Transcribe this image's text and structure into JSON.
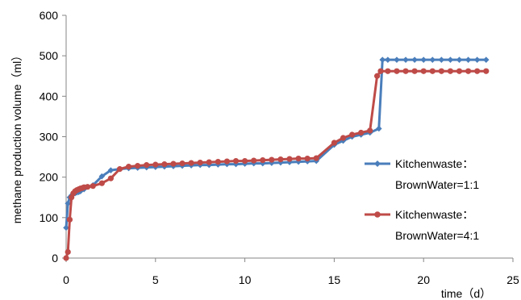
{
  "chart_data": {
    "type": "line",
    "title": "",
    "xlabel": "time（d）",
    "ylabel": "methane production volume（ml）",
    "xlim": [
      0,
      25
    ],
    "ylim": [
      0,
      600
    ],
    "xticks": [
      0,
      5,
      10,
      15,
      20,
      25
    ],
    "yticks": [
      0,
      100,
      200,
      300,
      400,
      500,
      600
    ],
    "grid": false,
    "legend_position": "right",
    "series": [
      {
        "name_line1": "Kitchenwaste：",
        "name_line2": "BrownWater=1:1",
        "color": "#4a7ebb",
        "marker": "diamond",
        "x": [
          0,
          0.1,
          0.2,
          0.3,
          0.4,
          0.5,
          0.6,
          0.7,
          0.8,
          1.0,
          1.5,
          2.0,
          2.5,
          3.0,
          3.5,
          4.0,
          4.5,
          5.0,
          5.5,
          6.0,
          6.5,
          7.0,
          7.5,
          8.0,
          8.5,
          9.0,
          9.5,
          10.0,
          10.5,
          11.0,
          11.5,
          12.0,
          12.5,
          13.0,
          13.5,
          14.0,
          15.0,
          15.5,
          16.0,
          16.5,
          17.0,
          17.5,
          17.7,
          18.0,
          18.5,
          19.0,
          19.5,
          20.0,
          20.5,
          21.0,
          21.5,
          22.0,
          22.5,
          23.0,
          23.5
        ],
        "values": [
          75,
          135,
          150,
          155,
          158,
          160,
          162,
          163,
          165,
          170,
          180,
          202,
          217,
          220,
          222,
          223,
          224,
          225,
          226,
          227,
          228,
          229,
          230,
          230,
          231,
          232,
          232,
          233,
          234,
          234,
          235,
          236,
          237,
          238,
          239,
          240,
          280,
          290,
          300,
          305,
          310,
          320,
          490,
          490,
          490,
          490,
          490,
          490,
          490,
          490,
          490,
          490,
          490,
          490,
          490
        ]
      },
      {
        "name_line1": "Kitchenwaste：",
        "name_line2": "BrownWater=4:1",
        "color": "#be4b48",
        "marker": "circle",
        "x": [
          0,
          0.1,
          0.2,
          0.3,
          0.4,
          0.5,
          0.6,
          0.7,
          0.8,
          0.9,
          1.0,
          1.2,
          1.5,
          2.0,
          2.5,
          3.0,
          3.5,
          4.0,
          4.5,
          5.0,
          5.5,
          6.0,
          6.5,
          7.0,
          7.5,
          8.0,
          8.5,
          9.0,
          9.5,
          10.0,
          10.5,
          11.0,
          11.5,
          12.0,
          12.5,
          13.0,
          13.5,
          14.0,
          15.0,
          15.5,
          16.0,
          16.5,
          17.0,
          17.4,
          17.6,
          18.0,
          18.5,
          19.0,
          19.5,
          20.0,
          20.5,
          21.0,
          21.5,
          22.0,
          22.5,
          23.0,
          23.5
        ],
        "values": [
          0,
          15,
          95,
          150,
          160,
          165,
          168,
          170,
          172,
          173,
          175,
          176,
          178,
          185,
          197,
          220,
          226,
          228,
          230,
          231,
          232,
          233,
          234,
          235,
          236,
          237,
          238,
          239,
          240,
          240,
          241,
          242,
          243,
          244,
          245,
          246,
          246,
          247,
          285,
          297,
          305,
          310,
          315,
          450,
          462,
          462,
          462,
          462,
          462,
          462,
          462,
          462,
          462,
          462,
          462,
          462,
          462
        ]
      }
    ]
  }
}
